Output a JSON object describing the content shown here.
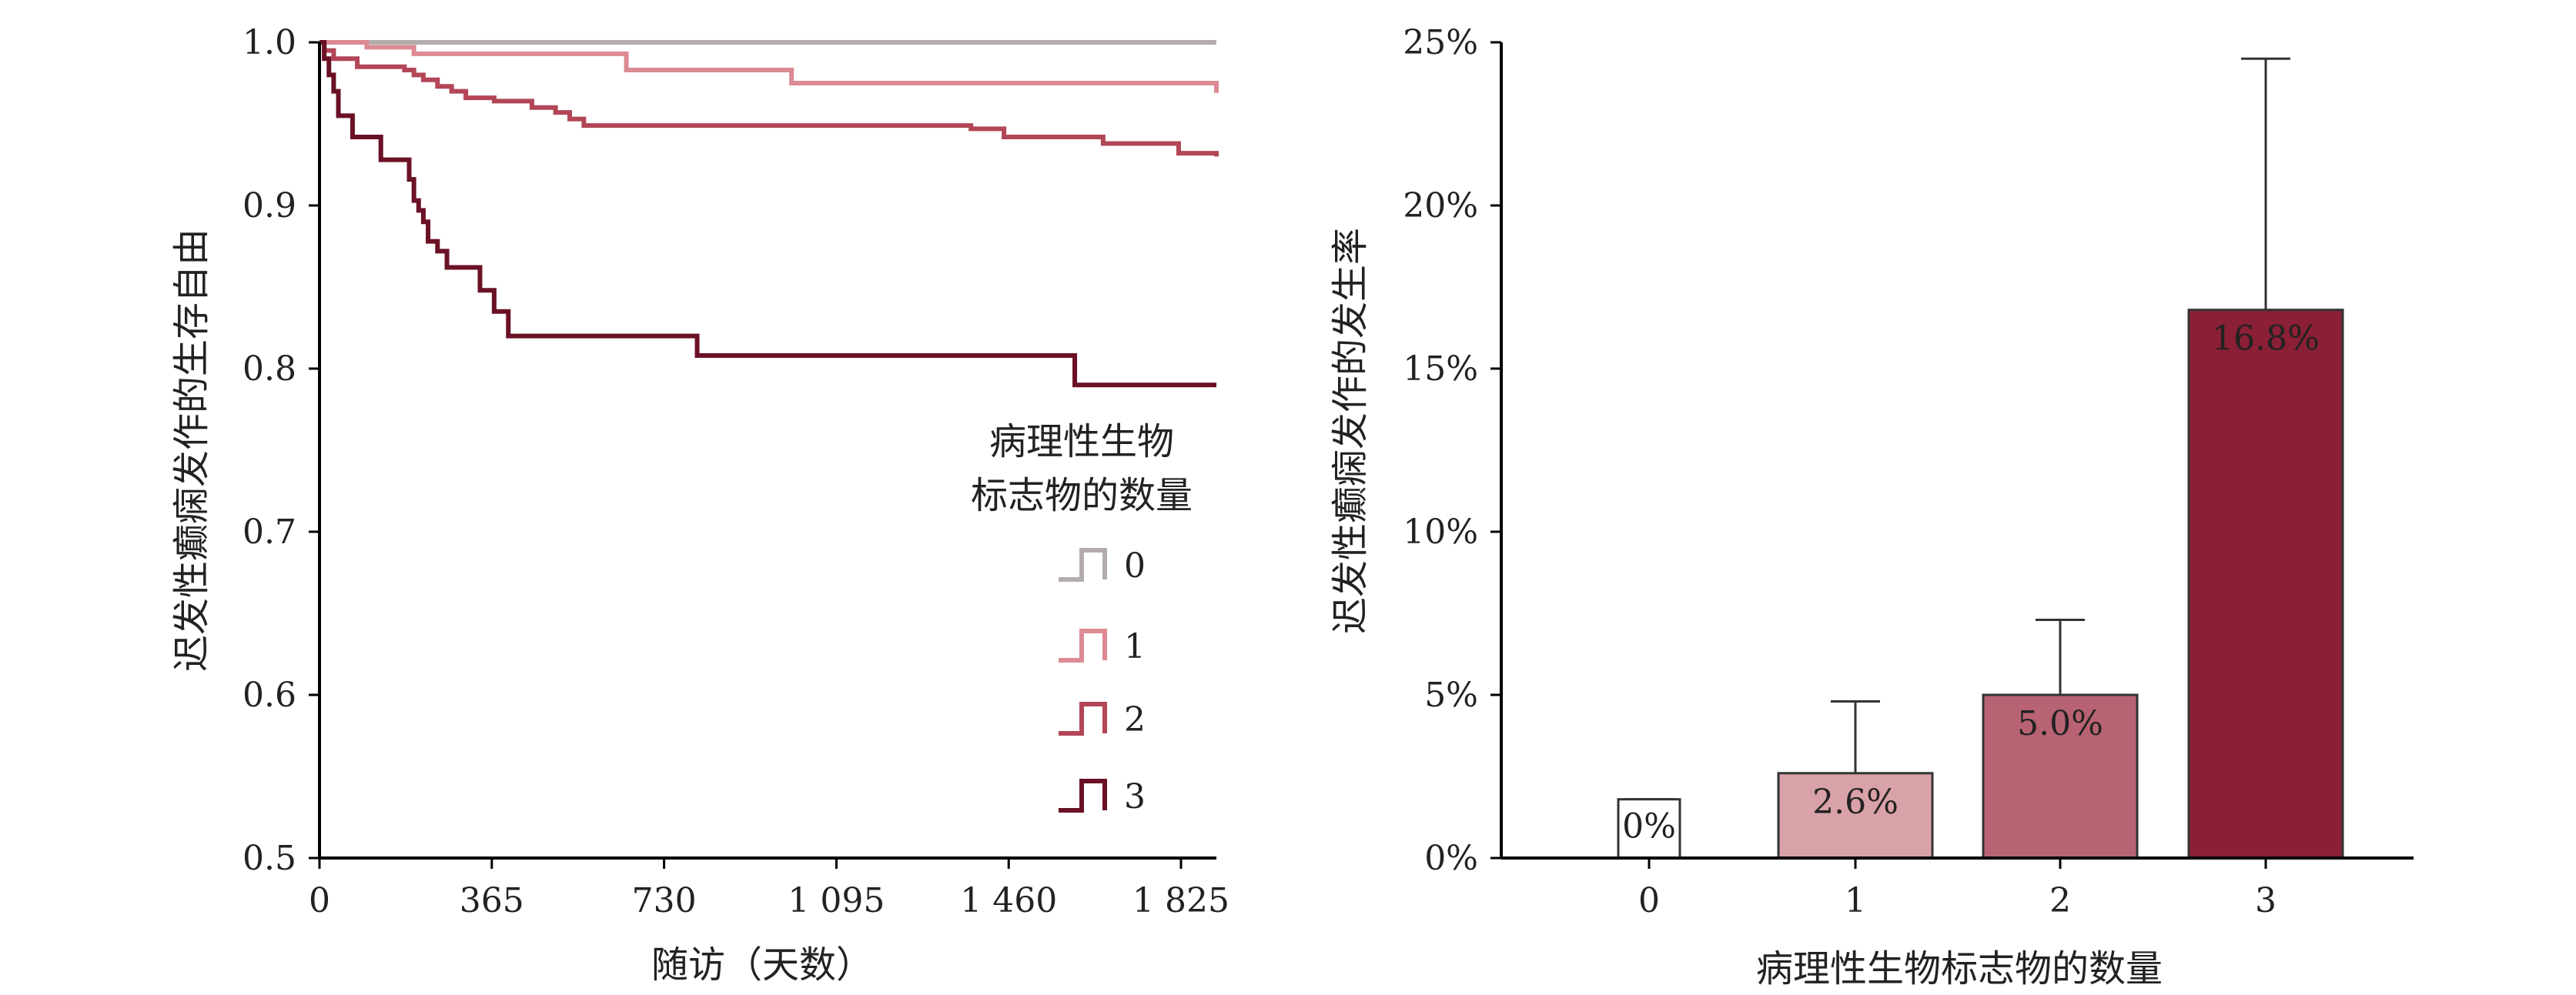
{
  "chart_data": [
    {
      "type": "line",
      "subtype": "kaplan-meier-step",
      "xlabel": "随访（天数）",
      "ylabel": "迟发性癫痫发作的生存自由",
      "xlim": [
        0,
        1900
      ],
      "ylim": [
        0.5,
        1.0
      ],
      "x_ticks": [
        0,
        365,
        730,
        1095,
        1460,
        1825
      ],
      "x_tick_labels": [
        "0",
        "365",
        "730",
        "1 095",
        "1 460",
        "1 825"
      ],
      "y_ticks": [
        0.5,
        0.6,
        0.7,
        0.8,
        0.9,
        1.0
      ],
      "y_tick_labels": [
        "0.5",
        "0.6",
        "0.7",
        "0.8",
        "0.9",
        "1.0"
      ],
      "legend_title_lines": [
        "病理性生物",
        "标志物的数量"
      ],
      "legend_position": "right",
      "series": [
        {
          "name": "0",
          "color": "#b3acae",
          "x": [
            0,
            1900
          ],
          "y": [
            1.0,
            1.0
          ]
        },
        {
          "name": "1",
          "color": "#dc8a93",
          "x": [
            0,
            50,
            100,
            200,
            650,
            1000,
            1900
          ],
          "y": [
            1.0,
            1.0,
            0.997,
            0.993,
            0.983,
            0.975,
            0.969
          ]
        },
        {
          "name": "2",
          "color": "#b24657",
          "x": [
            0,
            10,
            30,
            80,
            180,
            200,
            220,
            250,
            280,
            310,
            370,
            450,
            500,
            530,
            560,
            1380,
            1450,
            1660,
            1820,
            1900
          ],
          "y": [
            1.0,
            0.995,
            0.99,
            0.985,
            0.983,
            0.98,
            0.977,
            0.973,
            0.97,
            0.966,
            0.964,
            0.96,
            0.957,
            0.953,
            0.949,
            0.947,
            0.942,
            0.938,
            0.932,
            0.93
          ],
          "note": "steps drawn as read"
        },
        {
          "name": "3",
          "color": "#6b1126",
          "x": [
            0,
            10,
            20,
            30,
            40,
            70,
            130,
            190,
            200,
            210,
            220,
            230,
            250,
            270,
            340,
            370,
            400,
            425,
            455,
            500,
            800,
            1600,
            1650,
            1900
          ],
          "y": [
            1.0,
            0.99,
            0.98,
            0.97,
            0.955,
            0.942,
            0.928,
            0.916,
            0.903,
            0.897,
            0.89,
            0.878,
            0.872,
            0.862,
            0.848,
            0.835,
            0.82,
            0.82,
            0.82,
            0.82,
            0.808,
            0.79,
            0.79,
            0.79
          ]
        }
      ]
    },
    {
      "type": "bar",
      "xlabel": "病理性生物标志物的数量",
      "ylabel": "迟发性癫痫发作的发生率",
      "ylim": [
        0,
        25
      ],
      "y_ticks": [
        0,
        5,
        10,
        15,
        20,
        25
      ],
      "y_tick_labels": [
        "0%",
        "5%",
        "10%",
        "15%",
        "20%",
        "25%"
      ],
      "categories": [
        "0",
        "1",
        "2",
        "3"
      ],
      "values": [
        0,
        2.6,
        5.0,
        16.8
      ],
      "error_upper": [
        1.8,
        4.8,
        7.3,
        24.5
      ],
      "value_labels": [
        "0%",
        "2.6%",
        "5.0%",
        "16.8%"
      ],
      "colors": [
        "#ffffff",
        "#d9a1a8",
        "#b86374",
        "#8a1f35"
      ]
    }
  ]
}
